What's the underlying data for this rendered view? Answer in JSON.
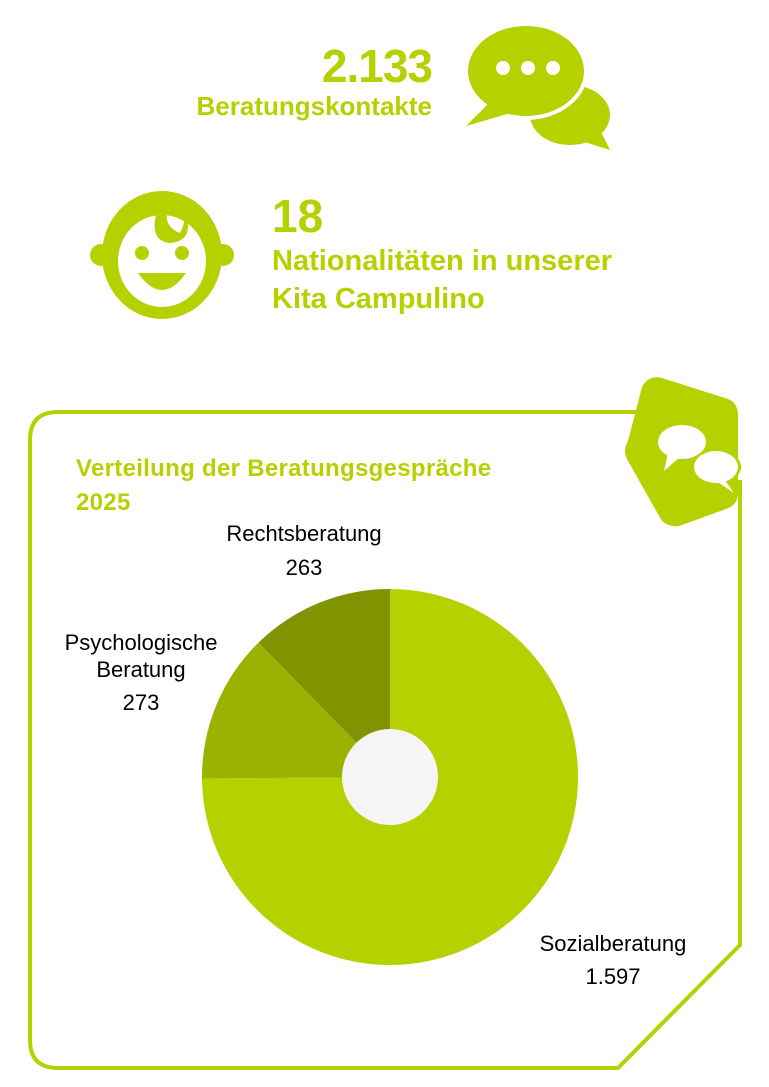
{
  "stats": {
    "contacts_value": "2.133",
    "contacts_label": "Beratungskontakte",
    "nations_value": "18",
    "nations_label_line1": "Nationalitäten in unserer",
    "nations_label_line2": "Kita Campulino"
  },
  "colors": {
    "accent": "#b5d100",
    "slice_main": "#b5d100",
    "slice_mid": "#9bb300",
    "slice_dark": "#7f9400",
    "hole": "#f5f5f5"
  },
  "icons": [
    "chat-bubbles-icon",
    "baby-face-icon",
    "chat-badge-icon"
  ],
  "chart_data": {
    "type": "pie",
    "title_line1": "Verteilung der Beratungsgespräche",
    "title_line2": "2025",
    "slices": [
      {
        "label": "Sozialberatung",
        "value": 1597,
        "display": "1.597",
        "color": "#b5d100"
      },
      {
        "label": "Psychologische Beratung",
        "label_line1": "Psychologische",
        "label_line2": "Beratung",
        "value": 273,
        "display": "273",
        "color": "#9bb300"
      },
      {
        "label": "Rechtsberatung",
        "value": 263,
        "display": "263",
        "color": "#7f9400"
      }
    ]
  }
}
